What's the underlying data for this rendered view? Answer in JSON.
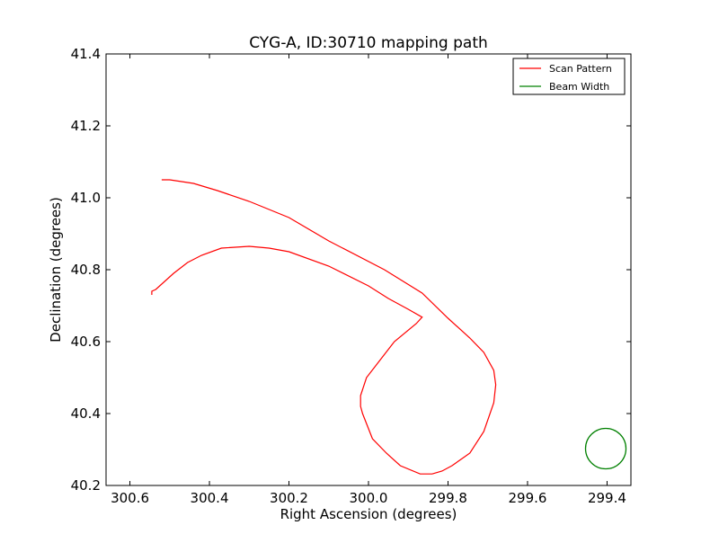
{
  "chart_data": {
    "type": "line",
    "title": "CYG-A, ID:30710 mapping path",
    "xlabel": "Right Ascension (degrees)",
    "ylabel": "Declination (degrees)",
    "xlim": [
      300.66,
      299.34
    ],
    "ylim": [
      40.2,
      41.4
    ],
    "x_inverted": true,
    "xticks": [
      300.6,
      300.4,
      300.2,
      300.0,
      299.8,
      299.6,
      299.4
    ],
    "xtick_labels": [
      "300.6",
      "300.4",
      "300.2",
      "300.0",
      "299.8",
      "299.6",
      "299.4"
    ],
    "yticks": [
      40.2,
      40.4,
      40.6,
      40.8,
      41.0,
      41.2,
      41.4
    ],
    "ytick_labels": [
      "40.2",
      "40.4",
      "40.6",
      "40.8",
      "41.0",
      "41.2",
      "41.4"
    ],
    "grid": false,
    "legend_position": "top-right",
    "series": [
      {
        "name": "Scan Pattern",
        "color": "#ff0000",
        "x": [
          300.545,
          300.545,
          300.535,
          300.49,
          300.455,
          300.42,
          300.37,
          300.3,
          300.25,
          300.2,
          300.1,
          300.0,
          299.95,
          299.9,
          299.865,
          299.88,
          299.935,
          299.97,
          300.005,
          300.02,
          300.02,
          300.015,
          299.99,
          299.955,
          299.92,
          299.87,
          299.84,
          299.815,
          299.79,
          299.745,
          299.71,
          299.685,
          299.68,
          299.685,
          299.71,
          299.745,
          299.8,
          299.865,
          299.96,
          300.1,
          300.2,
          300.3,
          300.38,
          300.44,
          300.5,
          300.52
        ],
        "y": [
          40.73,
          40.74,
          40.745,
          40.79,
          40.82,
          40.84,
          40.86,
          40.865,
          40.86,
          40.85,
          40.81,
          40.755,
          40.72,
          40.69,
          40.668,
          40.65,
          40.6,
          40.55,
          40.5,
          40.45,
          40.42,
          40.4,
          40.33,
          40.29,
          40.255,
          40.232,
          40.232,
          40.24,
          40.255,
          40.29,
          40.35,
          40.43,
          40.48,
          40.52,
          40.57,
          40.61,
          40.665,
          40.735,
          40.8,
          40.88,
          40.945,
          40.99,
          41.02,
          41.04,
          41.05,
          41.05
        ]
      },
      {
        "name": "Beam Width",
        "color": "#008000"
      }
    ]
  }
}
